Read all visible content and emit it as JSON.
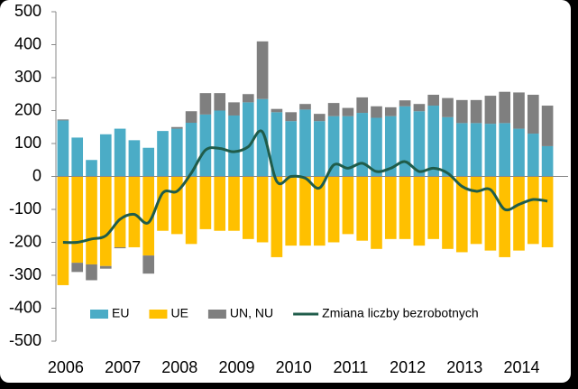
{
  "chart_data": {
    "type": "bar",
    "categories": [
      "2006",
      null,
      null,
      null,
      "2007",
      null,
      null,
      null,
      "2008",
      null,
      null,
      null,
      "2009",
      null,
      null,
      null,
      "2010",
      null,
      null,
      null,
      "2011",
      null,
      null,
      null,
      "2012",
      null,
      null,
      null,
      "2013",
      null,
      null,
      null,
      "2014",
      null,
      null
    ],
    "series": [
      {
        "name": "EU",
        "type": "bar",
        "color": "#4bacc6",
        "values": [
          170,
          118,
          50,
          128,
          145,
          110,
          87,
          138,
          145,
          163,
          188,
          200,
          185,
          225,
          235,
          195,
          168,
          203,
          168,
          183,
          183,
          193,
          178,
          183,
          213,
          198,
          215,
          180,
          162,
          162,
          160,
          162,
          145,
          130,
          92
        ]
      },
      {
        "name": "UE",
        "type": "bar",
        "color": "#ffc000",
        "values": [
          -330,
          -262,
          -267,
          -272,
          -215,
          -215,
          -240,
          -165,
          -175,
          -205,
          -160,
          -165,
          -165,
          -190,
          -200,
          -245,
          -210,
          -210,
          -210,
          -200,
          -175,
          -195,
          -220,
          -190,
          -190,
          -210,
          -190,
          -220,
          -230,
          -205,
          -225,
          -245,
          -225,
          -205,
          -215
        ]
      },
      {
        "name": "UN, NU",
        "type": "bar",
        "color": "#7f7f7f",
        "values": [
          3,
          -28,
          -48,
          -8,
          -3,
          0,
          -55,
          0,
          5,
          35,
          65,
          53,
          40,
          25,
          175,
          10,
          27,
          17,
          22,
          40,
          25,
          47,
          35,
          27,
          18,
          22,
          33,
          58,
          70,
          70,
          85,
          95,
          110,
          118,
          123
        ]
      },
      {
        "name": "Zmiana liczby bezrobotnych",
        "type": "line",
        "color": "#1f5c4a",
        "values": [
          -200,
          -200,
          -190,
          -180,
          -130,
          -115,
          -140,
          -50,
          -45,
          10,
          80,
          85,
          75,
          90,
          135,
          -15,
          0,
          -5,
          -35,
          35,
          25,
          40,
          15,
          25,
          45,
          15,
          25,
          10,
          -30,
          -45,
          -40,
          -100,
          -85,
          -70,
          -75
        ]
      }
    ],
    "ylim": [
      -500,
      500
    ],
    "yticks": [
      -500,
      -400,
      -300,
      -200,
      -100,
      0,
      100,
      200,
      300,
      400,
      500
    ],
    "legend": "bottom"
  }
}
